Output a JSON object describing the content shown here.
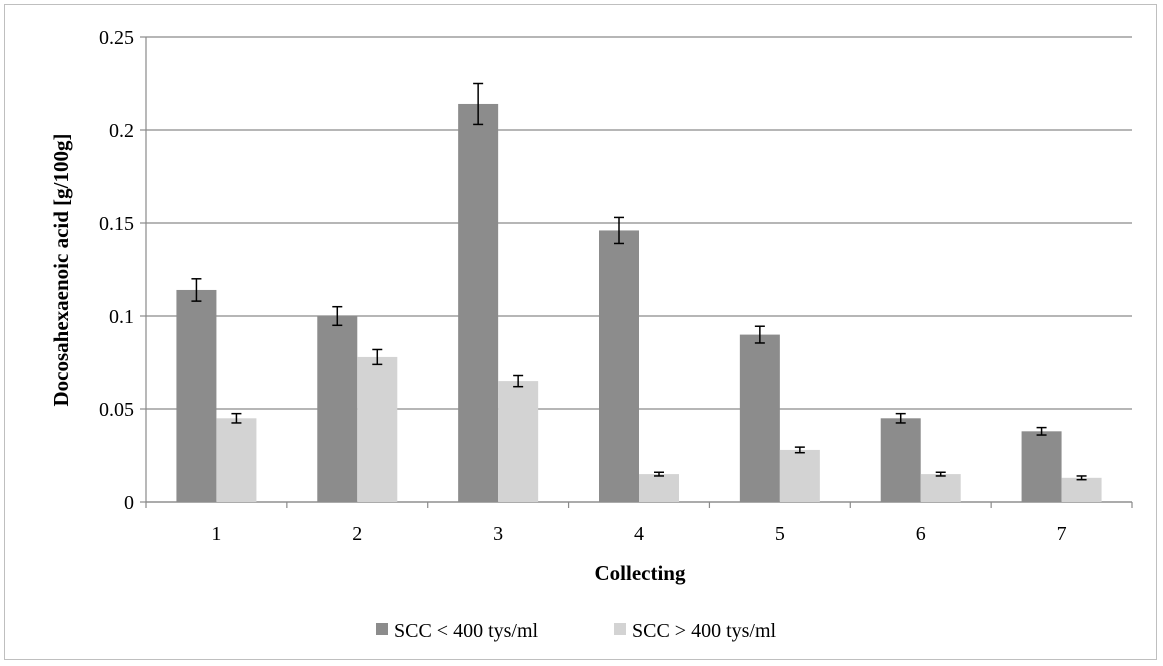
{
  "chart_data": {
    "type": "bar",
    "title": "",
    "xlabel": "Collecting",
    "ylabel": "Docosahexaenoic acid  [g/100g]",
    "categories": [
      "1",
      "2",
      "3",
      "4",
      "5",
      "6",
      "7"
    ],
    "ylim": [
      0,
      0.25
    ],
    "yticks": [
      0,
      0.05,
      0.1,
      0.15,
      0.2,
      0.25
    ],
    "ytick_labels": [
      "0",
      "0.05",
      "0.1",
      "0.15",
      "0.2",
      "0.25"
    ],
    "grid": true,
    "legend_position": "bottom",
    "error_bars": true,
    "series": [
      {
        "name": "SCC < 400 tys/ml",
        "color": "#8c8c8c",
        "values": [
          0.114,
          0.1,
          0.214,
          0.146,
          0.09,
          0.045,
          0.038
        ],
        "errors": [
          0.006,
          0.005,
          0.011,
          0.007,
          0.0045,
          0.0025,
          0.002
        ]
      },
      {
        "name": "SCC > 400 tys/ml",
        "color": "#d3d3d3",
        "values": [
          0.045,
          0.078,
          0.065,
          0.015,
          0.028,
          0.015,
          0.013
        ],
        "errors": [
          0.0025,
          0.004,
          0.003,
          0.001,
          0.0015,
          0.001,
          0.001
        ]
      }
    ]
  }
}
